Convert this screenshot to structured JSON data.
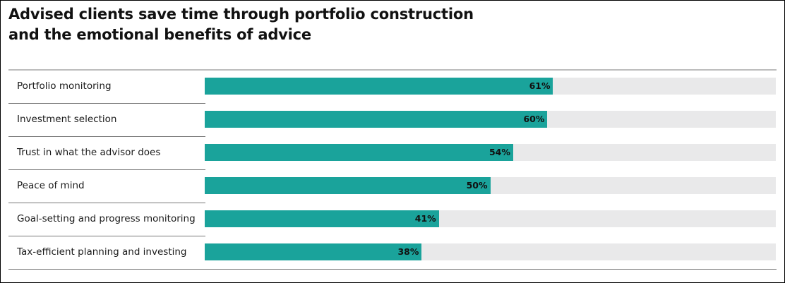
{
  "chart_data": {
    "type": "bar",
    "orientation": "horizontal",
    "title": "Advised clients save time through portfolio construction and the emotional benefits of advice",
    "title_lines": [
      "Advised clients save time through portfolio construction",
      "and the emotional benefits of advice"
    ],
    "categories": [
      "Portfolio monitoring",
      "Investment selection",
      "Trust in what the advisor does",
      "Peace of mind",
      "Goal-setting and progress monitoring",
      "Tax-efficient planning and investing"
    ],
    "values": [
      61,
      60,
      54,
      50,
      41,
      38
    ],
    "value_labels": [
      "61%",
      "60%",
      "54%",
      "50%",
      "41%",
      "38%"
    ],
    "unit": "%",
    "xlim": [
      0,
      100
    ],
    "xlabel": "",
    "ylabel": "",
    "grid": false,
    "legend": null,
    "colors": {
      "bar": "#1aa39b",
      "track": "#e9e9ea"
    }
  }
}
